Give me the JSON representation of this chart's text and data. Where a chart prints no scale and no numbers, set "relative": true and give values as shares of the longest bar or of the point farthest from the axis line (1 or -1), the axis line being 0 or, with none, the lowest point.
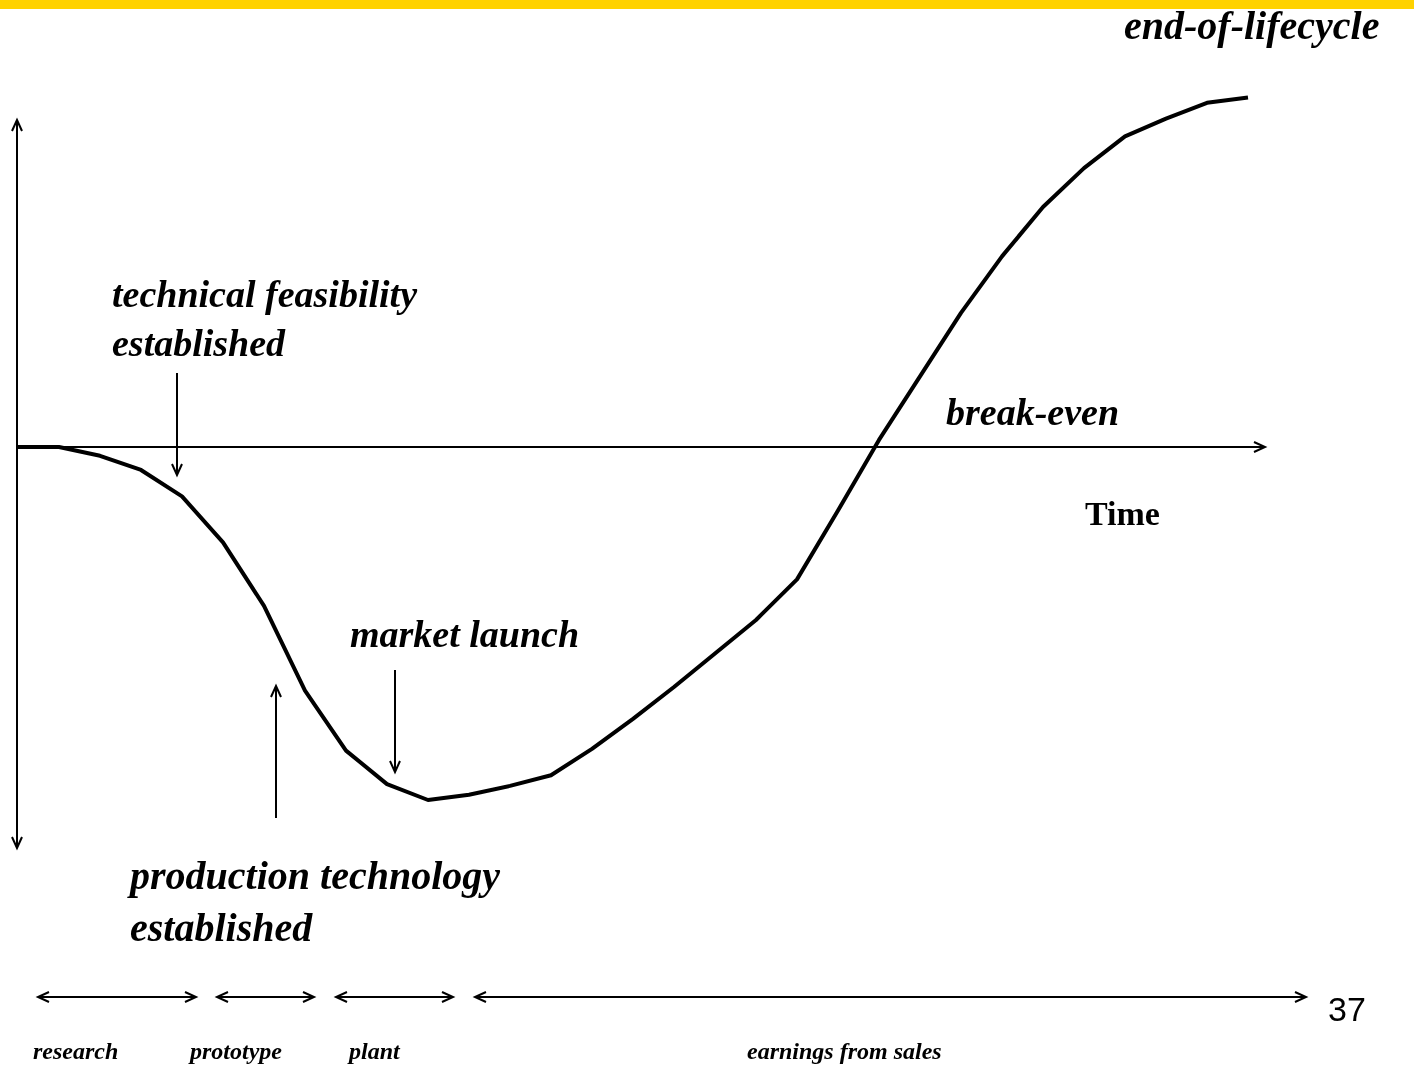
{
  "chart_data": {
    "type": "line",
    "relative": true,
    "xlabel": "Time",
    "categories": [
      null,
      null,
      null,
      null,
      null,
      null,
      null,
      null,
      null,
      null,
      null,
      null,
      null,
      null,
      null,
      null,
      null,
      null,
      null,
      null,
      null,
      null,
      null,
      null,
      null,
      null,
      null,
      null,
      null,
      null,
      null
    ],
    "series": [
      {
        "color": "#000000",
        "values": [
          0,
          0,
          -0.025,
          -0.065,
          -0.14,
          -0.27,
          -0.45,
          -0.69,
          -0.86,
          -0.955,
          -1,
          -0.985,
          -0.96,
          -0.93,
          -0.855,
          -0.77,
          -0.68,
          -0.585,
          -0.49,
          -0.375,
          -0.18,
          0.02,
          0.2,
          0.38,
          0.54,
          0.68,
          0.79,
          0.88,
          0.93,
          0.975,
          0.99
        ]
      }
    ],
    "annotations": [
      "end-of-lifecycle",
      "technical feasibility established",
      "break-even",
      "market launch",
      "production technology established",
      "research",
      "prototype",
      "plant",
      "earnings from sales",
      "37"
    ]
  }
}
